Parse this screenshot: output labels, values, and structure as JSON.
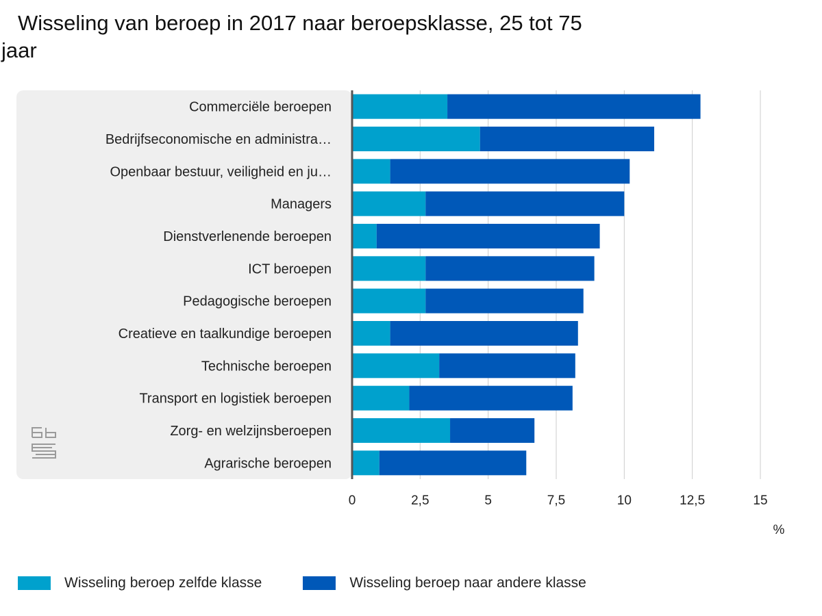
{
  "chart_data": {
    "type": "bar",
    "orientation": "horizontal",
    "stacked": true,
    "title": "Wisseling van beroep in 2017 naar beroepsklasse, 25 tot 75 jaar",
    "unit": "%",
    "xlim": [
      0,
      15
    ],
    "ticks": [
      0,
      2.5,
      5,
      7.5,
      10,
      12.5,
      15
    ],
    "tick_labels": [
      "0",
      "2,5",
      "5",
      "7,5",
      "10",
      "12,5",
      "15"
    ],
    "grid": true,
    "legend_position": "bottom-left",
    "categories": [
      "Commerciële beroepen",
      "Bedrijfseconomische en administra…",
      "Openbaar bestuur, veiligheid en ju…",
      "Managers",
      "Dienstverlenende beroepen",
      "ICT beroepen",
      "Pedagogische beroepen",
      "Creatieve en taalkundige beroepen",
      "Technische beroepen",
      "Transport en logistiek beroepen",
      "Zorg- en welzijnsberoepen",
      "Agrarische beroepen"
    ],
    "series": [
      {
        "name": "Wisseling beroep zelfde klasse",
        "color": "#00a1cd",
        "values": [
          3.5,
          4.7,
          1.4,
          2.7,
          0.9,
          2.7,
          2.7,
          1.4,
          3.2,
          2.1,
          3.6,
          1.0
        ]
      },
      {
        "name": "Wisseling beroep naar andere klasse",
        "color": "#0058b8",
        "values": [
          9.3,
          6.4,
          8.8,
          7.3,
          8.2,
          6.2,
          5.8,
          6.9,
          5.0,
          6.0,
          3.1,
          5.4
        ]
      }
    ]
  },
  "colors": {
    "panel": "#efefef",
    "grid": "#cccccc",
    "axis": "#555555"
  },
  "logo": "cbs-logo-icon"
}
